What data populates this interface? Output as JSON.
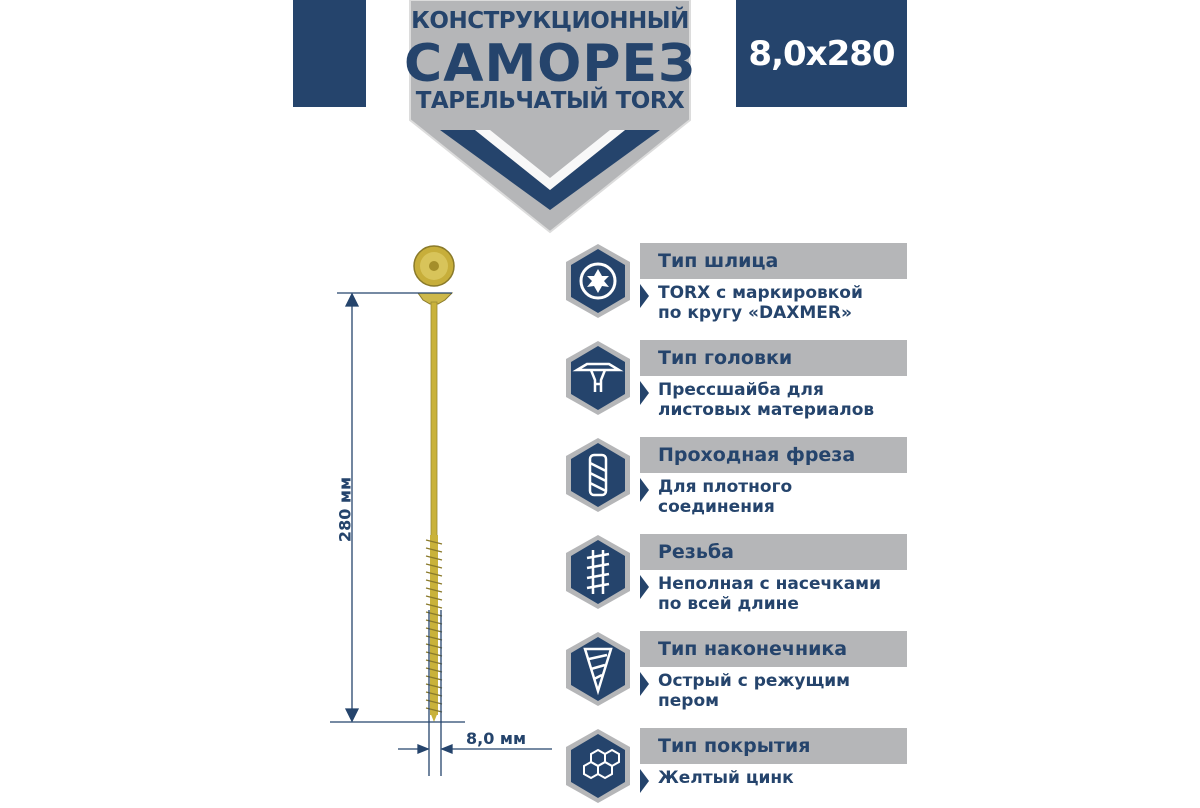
{
  "header": {
    "line1": "КОНСТРУКЦИОННЫЙ",
    "line2": "САМОРЕЗ",
    "line3": "ТАРЕЛЬЧАТЫЙ TORX",
    "size": "8,0x280"
  },
  "dimensions": {
    "length": "280 мм",
    "diameter": "8,0 мм"
  },
  "features": [
    {
      "title": "Тип шлица",
      "desc": "TORX с маркировкой\nпо кругу «DAXMER»",
      "icon": "torx-icon"
    },
    {
      "title": "Тип головки",
      "desc": "Прессшайба для\nлистовых материалов",
      "icon": "washer-head-icon"
    },
    {
      "title": "Проходная фреза",
      "desc": "Для плотного\nсоединения",
      "icon": "milling-cutter-icon"
    },
    {
      "title": "Резьба",
      "desc": "Неполная с насечками\nпо всей длине",
      "icon": "thread-icon"
    },
    {
      "title": "Тип наконечника",
      "desc": "Острый с режущим\nпером",
      "icon": "tip-icon"
    },
    {
      "title": "Тип покрытия",
      "desc": "Желтый цинк",
      "icon": "coating-hexagons-icon"
    }
  ],
  "colors": {
    "navy": "#25446c",
    "gray": "#b5b6b8",
    "screw": "#c9b23a"
  }
}
